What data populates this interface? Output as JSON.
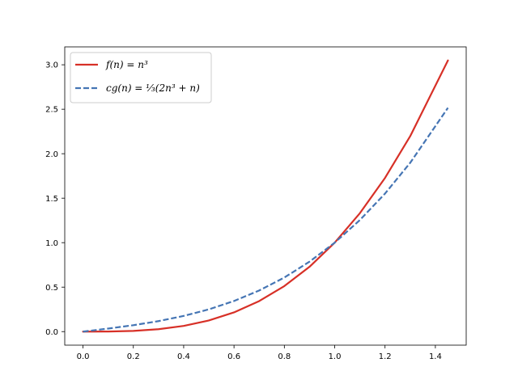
{
  "chart_data": {
    "type": "line",
    "title": "",
    "xlabel": "",
    "ylabel": "",
    "xlim": [
      -0.0725,
      1.5225
    ],
    "ylim": [
      -0.1524,
      3.2011
    ],
    "xticks": [
      0.0,
      0.2,
      0.4,
      0.6,
      0.8,
      1.0,
      1.2,
      1.4
    ],
    "xtick_labels": [
      "0.0",
      "0.2",
      "0.4",
      "0.6",
      "0.8",
      "1.0",
      "1.2",
      "1.4"
    ],
    "yticks": [
      0.0,
      0.5,
      1.0,
      1.5,
      2.0,
      2.5,
      3.0
    ],
    "ytick_labels": [
      "0.0",
      "0.5",
      "1.0",
      "1.5",
      "2.0",
      "2.5",
      "3.0"
    ],
    "grid": false,
    "legend_position": "top-left",
    "series": [
      {
        "name": "f(n) = n³",
        "color": "#d73027",
        "style": "solid",
        "x": [
          0.0,
          0.1,
          0.2,
          0.3,
          0.4,
          0.5,
          0.6,
          0.7,
          0.8,
          0.9,
          1.0,
          1.1,
          1.2,
          1.3,
          1.45
        ],
        "y": [
          0.0,
          0.001,
          0.008,
          0.027,
          0.064,
          0.125,
          0.216,
          0.343,
          0.512,
          0.729,
          1.0,
          1.331,
          1.728,
          2.197,
          3.049
        ]
      },
      {
        "name": "cg(n) = ⅓(2n³ + n)",
        "color": "#4575b4",
        "style": "dashed",
        "x": [
          0.0,
          0.1,
          0.2,
          0.3,
          0.4,
          0.5,
          0.6,
          0.7,
          0.8,
          0.9,
          1.0,
          1.1,
          1.2,
          1.3,
          1.45
        ],
        "y": [
          0.0,
          0.034,
          0.072,
          0.118,
          0.176,
          0.25,
          0.344,
          0.462,
          0.608,
          0.786,
          1.0,
          1.254,
          1.552,
          1.898,
          2.516
        ]
      }
    ]
  }
}
